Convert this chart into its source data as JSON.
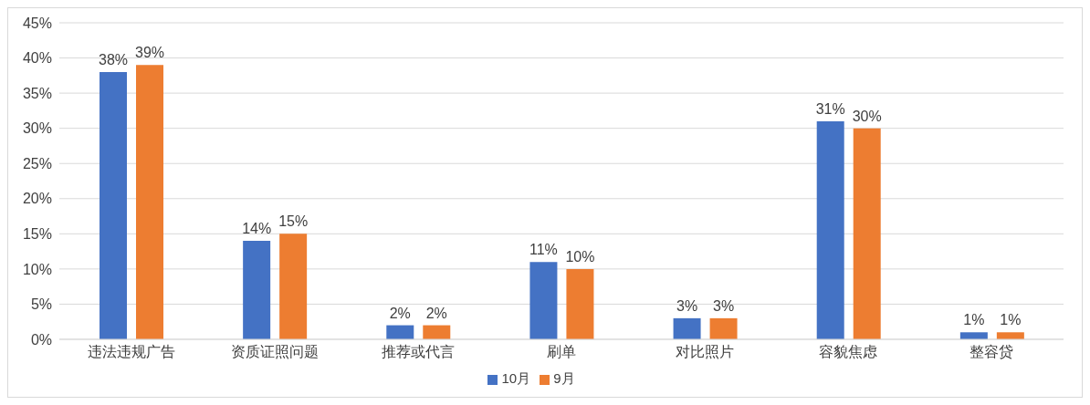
{
  "chart_data": {
    "type": "bar",
    "categories": [
      "违法违规广告",
      "资质证照问题",
      "推荐或代言",
      "刷单",
      "对比照片",
      "容貌焦虑",
      "整容贷"
    ],
    "series": [
      {
        "name": "10月",
        "color": "#4472c4",
        "values": [
          38,
          14,
          2,
          11,
          3,
          31,
          1
        ],
        "value_labels": [
          "38%",
          "14%",
          "2%",
          "11%",
          "3%",
          "31%",
          "1%"
        ]
      },
      {
        "name": "9月",
        "color": "#ed7d31",
        "values": [
          39,
          15,
          2,
          10,
          3,
          30,
          1
        ],
        "value_labels": [
          "39%",
          "15%",
          "2%",
          "10%",
          "3%",
          "30%",
          "1%"
        ]
      }
    ],
    "ylim": [
      0,
      45
    ],
    "yticks": [
      {
        "value": 0,
        "label": "0%"
      },
      {
        "value": 5,
        "label": "5%"
      },
      {
        "value": 10,
        "label": "10%"
      },
      {
        "value": 15,
        "label": "15%"
      },
      {
        "value": 20,
        "label": "20%"
      },
      {
        "value": 25,
        "label": "25%"
      },
      {
        "value": 30,
        "label": "30%"
      },
      {
        "value": 35,
        "label": "35%"
      },
      {
        "value": 40,
        "label": "40%"
      },
      {
        "value": 45,
        "label": "45%"
      }
    ],
    "grid": "y",
    "legend": "bottom"
  }
}
